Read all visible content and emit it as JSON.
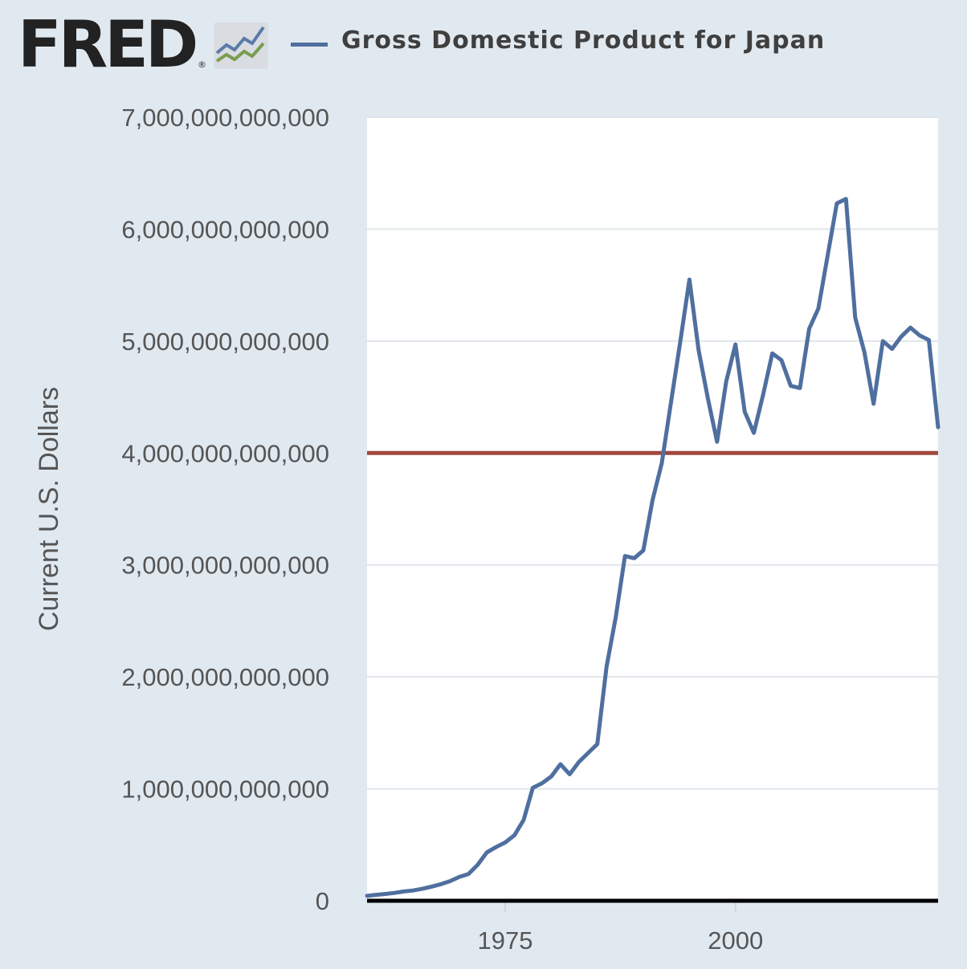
{
  "header": {
    "logo_text": "FRED",
    "logo_registered": "®",
    "logo_icon": "line-chart-icon",
    "legend_label": "Gross Domestic Product for Japan"
  },
  "colors": {
    "background": "#e1e9f0",
    "plot_background": "#ffffff",
    "series": "#4f6f9f",
    "reference_line": "#a0493e",
    "zero_axis": "#000000",
    "grid": "#e0e6ec"
  },
  "chart_data": {
    "type": "line",
    "title": "",
    "xlabel": "",
    "ylabel": "Current U.S. Dollars",
    "xlim": [
      1960,
      2022
    ],
    "ylim": [
      0,
      7000000000000
    ],
    "grid": "horizontal",
    "legend": "top-left",
    "x_ticks": [
      1975,
      2000
    ],
    "x_tick_labels": [
      "1975",
      "2000"
    ],
    "y_ticks": [
      0,
      1000000000000,
      2000000000000,
      3000000000000,
      4000000000000,
      5000000000000,
      6000000000000,
      7000000000000
    ],
    "y_tick_labels": [
      "0",
      "1,000,000,000,000",
      "2,000,000,000,000",
      "3,000,000,000,000",
      "4,000,000,000,000",
      "5,000,000,000,000",
      "6,000,000,000,000",
      "7,000,000,000,000"
    ],
    "reference_lines": [
      {
        "y": 4000000000000
      }
    ],
    "series": [
      {
        "name": "Gross Domestic Product for Japan",
        "x": [
          1960,
          1961,
          1962,
          1963,
          1964,
          1965,
          1966,
          1967,
          1968,
          1969,
          1970,
          1971,
          1972,
          1973,
          1974,
          1975,
          1976,
          1977,
          1978,
          1979,
          1980,
          1981,
          1982,
          1983,
          1984,
          1985,
          1986,
          1987,
          1988,
          1989,
          1990,
          1991,
          1992,
          1993,
          1994,
          1995,
          1996,
          1997,
          1998,
          1999,
          2000,
          2001,
          2002,
          2003,
          2004,
          2005,
          2006,
          2007,
          2008,
          2009,
          2010,
          2011,
          2012,
          2013,
          2014,
          2015,
          2016,
          2017,
          2018,
          2019,
          2020,
          2021,
          2022
        ],
        "values": [
          44000000000,
          53000000000,
          61000000000,
          70000000000,
          83000000000,
          92000000000,
          107000000000,
          126000000000,
          148000000000,
          175000000000,
          212000000000,
          238000000000,
          320000000000,
          432000000000,
          479000000000,
          521000000000,
          585000000000,
          722000000000,
          1010000000000,
          1050000000000,
          1110000000000,
          1220000000000,
          1130000000000,
          1240000000000,
          1320000000000,
          1400000000000,
          2090000000000,
          2530000000000,
          3080000000000,
          3060000000000,
          3130000000000,
          3580000000000,
          3910000000000,
          4450000000000,
          4990000000000,
          5550000000000,
          4920000000000,
          4490000000000,
          4100000000000,
          4640000000000,
          4970000000000,
          4370000000000,
          4180000000000,
          4520000000000,
          4890000000000,
          4830000000000,
          4600000000000,
          4580000000000,
          5110000000000,
          5290000000000,
          5760000000000,
          6230000000000,
          6270000000000,
          5210000000000,
          4900000000000,
          4440000000000,
          5000000000000,
          4930000000000,
          5040000000000,
          5120000000000,
          5050000000000,
          5010000000000,
          4230000000000
        ]
      }
    ]
  }
}
